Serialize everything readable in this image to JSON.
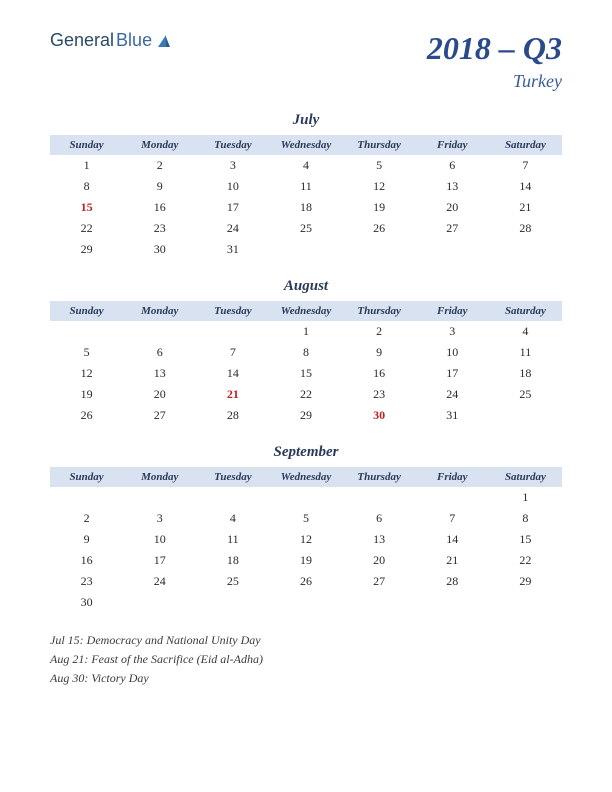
{
  "logo": {
    "text_general": "General",
    "text_blue": "Blue"
  },
  "title": {
    "quarter": "2018 – Q3",
    "country": "Turkey"
  },
  "colors": {
    "header_bg": "#d8e2f0",
    "title_color": "#2a4a8a",
    "country_color": "#3a5a9a",
    "text_color": "#2a2a2a",
    "holiday_color": "#bb2222"
  },
  "day_headers": [
    "Sunday",
    "Monday",
    "Tuesday",
    "Wednesday",
    "Thursday",
    "Friday",
    "Saturday"
  ],
  "months": [
    {
      "name": "July",
      "weeks": [
        [
          "1",
          "2",
          "3",
          "4",
          "5",
          "6",
          "7"
        ],
        [
          "8",
          "9",
          "10",
          "11",
          "12",
          "13",
          "14"
        ],
        [
          "15",
          "16",
          "17",
          "18",
          "19",
          "20",
          "21"
        ],
        [
          "22",
          "23",
          "24",
          "25",
          "26",
          "27",
          "28"
        ],
        [
          "29",
          "30",
          "31",
          "",
          "",
          "",
          ""
        ]
      ],
      "holidays": [
        15
      ]
    },
    {
      "name": "August",
      "weeks": [
        [
          "",
          "",
          "",
          "1",
          "2",
          "3",
          "4"
        ],
        [
          "5",
          "6",
          "7",
          "8",
          "9",
          "10",
          "11"
        ],
        [
          "12",
          "13",
          "14",
          "15",
          "16",
          "17",
          "18"
        ],
        [
          "19",
          "20",
          "21",
          "22",
          "23",
          "24",
          "25"
        ],
        [
          "26",
          "27",
          "28",
          "29",
          "30",
          "31",
          ""
        ]
      ],
      "holidays": [
        21,
        30
      ]
    },
    {
      "name": "September",
      "weeks": [
        [
          "",
          "",
          "",
          "",
          "",
          "",
          "1"
        ],
        [
          "2",
          "3",
          "4",
          "5",
          "6",
          "7",
          "8"
        ],
        [
          "9",
          "10",
          "11",
          "12",
          "13",
          "14",
          "15"
        ],
        [
          "16",
          "17",
          "18",
          "19",
          "20",
          "21",
          "22"
        ],
        [
          "23",
          "24",
          "25",
          "26",
          "27",
          "28",
          "29"
        ],
        [
          "30",
          "",
          "",
          "",
          "",
          "",
          ""
        ]
      ],
      "holidays": []
    }
  ],
  "holiday_notes": [
    "Jul 15: Democracy and National Unity Day",
    "Aug 21: Feast of the Sacrifice (Eid al-Adha)",
    "Aug 30: Victory Day"
  ]
}
